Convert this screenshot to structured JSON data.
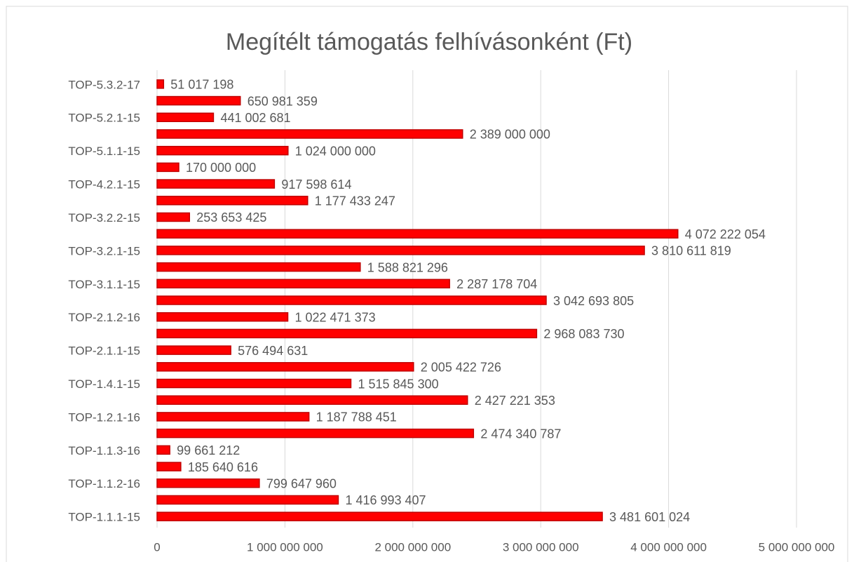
{
  "chart_data": {
    "type": "bar",
    "orientation": "horizontal",
    "title": "Megítélt támogatás felhívásonként (Ft)",
    "categories": [
      "TOP-1.1.1-15",
      null,
      "TOP-1.1.2-16",
      null,
      "TOP-1.1.3-16",
      null,
      "TOP-1.2.1-16",
      null,
      "TOP-1.4.1-15",
      null,
      "TOP-2.1.1-15",
      null,
      "TOP-2.1.2-16",
      null,
      "TOP-3.1.1-15",
      null,
      "TOP-3.2.1-15",
      null,
      "TOP-3.2.2-15",
      null,
      "TOP-4.2.1-15",
      null,
      "TOP-5.1.1-15",
      null,
      "TOP-5.2.1-15",
      null,
      "TOP-5.3.2-17"
    ],
    "values": [
      3481601024,
      1416993407,
      799647960,
      185640616,
      99661212,
      2474340787,
      1187788451,
      2427221353,
      1515845300,
      2005422726,
      576494631,
      2968083730,
      1022471373,
      3042693805,
      2287178704,
      1588821296,
      3810611819,
      4072222054,
      253653425,
      1177433247,
      917598614,
      170000000,
      1024000000,
      2389000000,
      441002681,
      650981359,
      51017198
    ],
    "value_labels": [
      "3 481 601 024",
      "1 416 993 407",
      "799 647 960",
      "185 640 616",
      "99 661 212",
      "2 474 340 787",
      "1 187 788 451",
      "2 427 221 353",
      "1 515 845 300",
      "2 005 422 726",
      "576 494 631",
      "2 968 083 730",
      "1 022 471 373",
      "3 042 693 805",
      "2 287 178 704",
      "1 588 821 296",
      "3 810 611 819",
      "4 072 222 054",
      "253 653 425",
      "1 177 433 247",
      "917 598 614",
      "170 000 000",
      "1 024 000 000",
      "2 389 000 000",
      "441 002 681",
      "650 981 359",
      "51 017 198"
    ],
    "color": "#ff0000",
    "xlim": [
      0,
      5000000000
    ],
    "xticks": [
      0,
      {
        "value": 1000000000,
        "label": "1 000 000 000"
      },
      {
        "value": 2000000000,
        "label": "2 000 000 000"
      },
      {
        "value": 3000000000,
        "label": "3 000 000 000"
      },
      {
        "value": 4000000000,
        "label": "4 000 000 000"
      },
      {
        "value": 5000000000,
        "label": "5 000 000 000"
      }
    ],
    "grid": true
  }
}
